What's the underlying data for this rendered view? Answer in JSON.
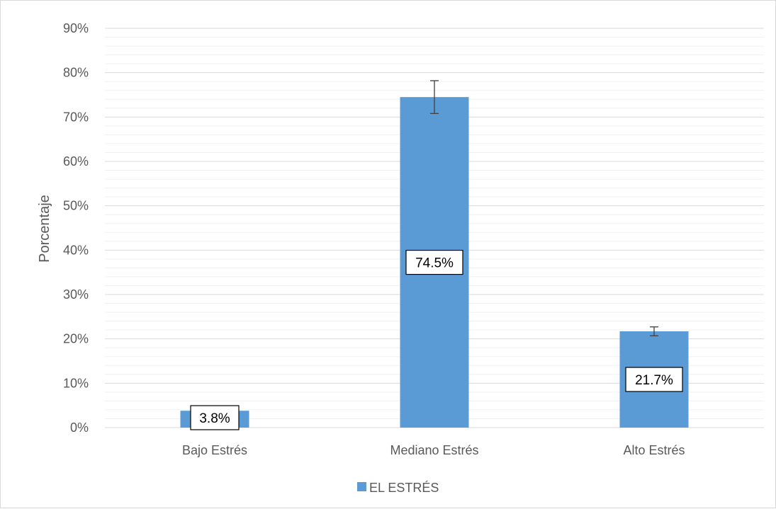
{
  "chart_data": {
    "type": "bar",
    "categories": [
      "Bajo Estrés",
      "Mediano Estrés",
      "Alto Estrés"
    ],
    "series": [
      {
        "name": "EL ESTRÉS",
        "values": [
          3.8,
          74.5,
          21.7
        ],
        "data_labels": [
          "3.8%",
          "74.5%",
          "21.7%"
        ],
        "error_bars": [
          null,
          3.7,
          1.0
        ],
        "color": "#5b9bd5"
      }
    ],
    "ylabel": "Porcentaje",
    "xlabel": "",
    "ylim": [
      0,
      90
    ],
    "yticks": [
      0,
      10,
      20,
      30,
      40,
      50,
      60,
      70,
      80,
      90
    ],
    "ytick_labels": [
      "0%",
      "10%",
      "20%",
      "30%",
      "40%",
      "50%",
      "60%",
      "70%",
      "80%",
      "90%"
    ],
    "grid": true,
    "minor_grid": true,
    "legend_position": "bottom",
    "colors": {
      "bar": "#5b9bd5",
      "grid": "#d9d9d9",
      "text": "#595959",
      "error_bar": "#404040"
    }
  }
}
